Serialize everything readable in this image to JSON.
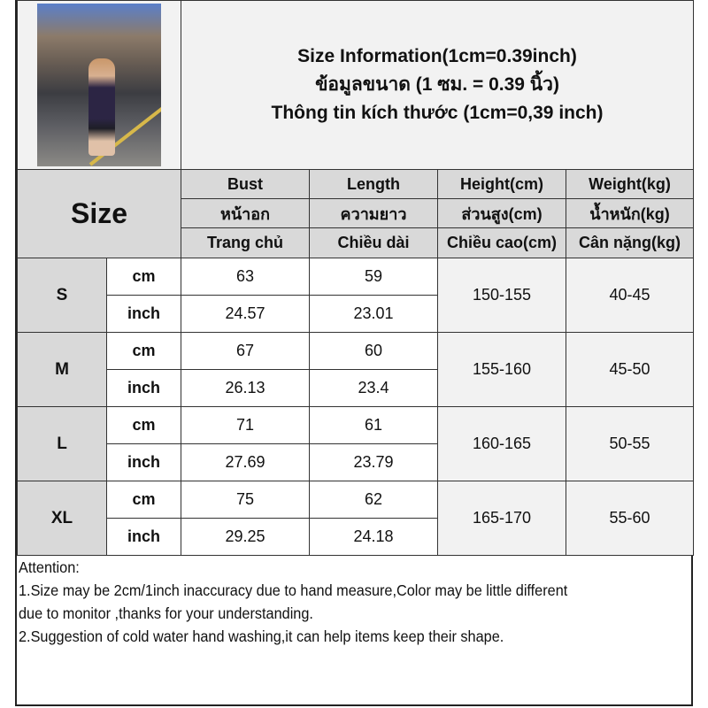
{
  "title_lines": [
    "Size Information(1cm=0.39inch)",
    "ข้อมูลขนาด (1 ซม. = 0.39 นิ้ว)",
    "Thông tin kích thước (1cm=0,39 inch)"
  ],
  "header": {
    "size_label": "Size",
    "columns": [
      [
        "Bust",
        "หน้าอก",
        "Trang chủ"
      ],
      [
        "Length",
        "ความยาว",
        "Chiều dài"
      ],
      [
        "Height(cm)",
        "ส่วนสูง(cm)",
        "Chiều cao(cm)"
      ],
      [
        "Weight(kg)",
        "น้ำหนัก(kg)",
        "Cân nặng(kg)"
      ]
    ]
  },
  "rows": [
    {
      "size": "S",
      "cm_label": "cm",
      "inch_label": "inch",
      "bust_cm": "63",
      "length_cm": "59",
      "bust_inch": "24.57",
      "length_inch": "23.01",
      "height": "150-155",
      "weight": "40-45"
    },
    {
      "size": "M",
      "cm_label": "cm",
      "inch_label": "inch",
      "bust_cm": "67",
      "length_cm": "60",
      "bust_inch": "26.13",
      "length_inch": "23.4",
      "height": "155-160",
      "weight": "45-50"
    },
    {
      "size": "L",
      "cm_label": "cm",
      "inch_label": "inch",
      "bust_cm": "71",
      "length_cm": "61",
      "bust_inch": "27.69",
      "length_inch": "23.79",
      "height": "160-165",
      "weight": "50-55"
    },
    {
      "size": "XL",
      "cm_label": "cm",
      "inch_label": "inch",
      "bust_cm": "75",
      "length_cm": "62",
      "bust_inch": "29.25",
      "length_inch": "24.18",
      "height": "165-170",
      "weight": "55-60"
    }
  ],
  "attention": [
    "Attention:",
    "1.Size may be 2cm/1inch inaccuracy due to hand measure,Color may be little different",
    "due to monitor ,thanks for your understanding.",
    "2.Suggestion of cold water hand washing,it can help items keep their shape."
  ]
}
